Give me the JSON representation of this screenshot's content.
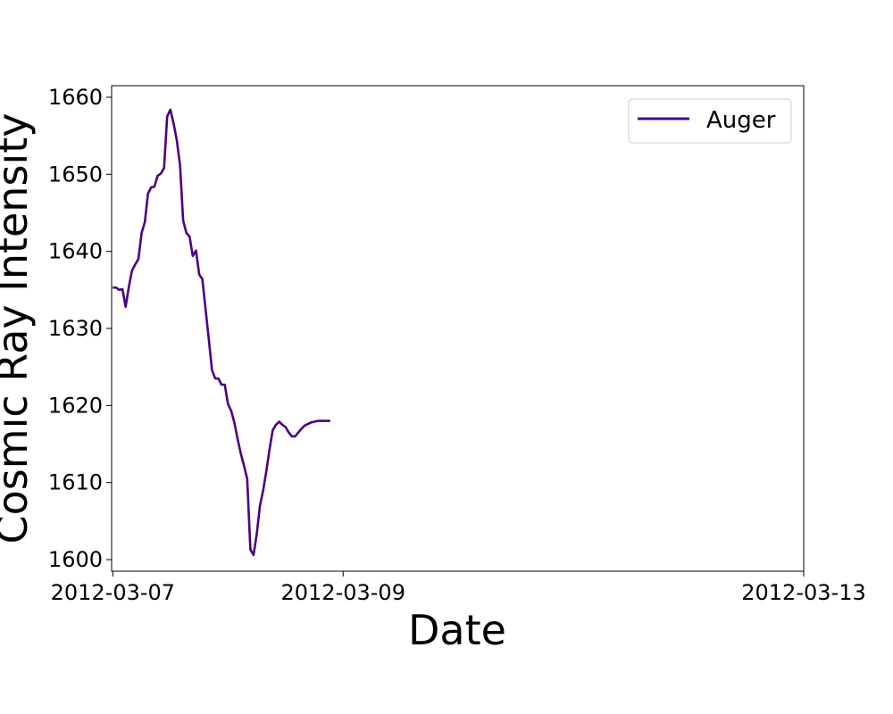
{
  "chart_data": {
    "type": "line",
    "xlabel": "Date",
    "ylabel": "Cosmic Ray Intensity",
    "x_ticks": [
      "2012-03-07",
      "2012-03-09",
      "2012-03-13"
    ],
    "y_ticks": [
      1600,
      1610,
      1620,
      1630,
      1640,
      1650,
      1660
    ],
    "xlim": [
      "2012-03-06T23:45",
      "2012-03-13T00:00"
    ],
    "ylim": [
      1598.5,
      1661.5
    ],
    "grid": false,
    "legend": "top-right",
    "series": [
      {
        "name": "Auger",
        "color": "#4b0082",
        "x": [
          "2012-03-07T00:00",
          "2012-03-07T00:40",
          "2012-03-07T01:20",
          "2012-03-07T02:00",
          "2012-03-07T02:40",
          "2012-03-07T03:20",
          "2012-03-07T04:00",
          "2012-03-07T04:40",
          "2012-03-07T05:20",
          "2012-03-07T06:00",
          "2012-03-07T06:40",
          "2012-03-07T07:20",
          "2012-03-07T08:00",
          "2012-03-07T08:40",
          "2012-03-07T09:20",
          "2012-03-07T10:00",
          "2012-03-07T10:40",
          "2012-03-07T11:20",
          "2012-03-07T12:00",
          "2012-03-07T12:40",
          "2012-03-07T13:20",
          "2012-03-07T14:00",
          "2012-03-07T14:40",
          "2012-03-07T15:20",
          "2012-03-07T16:00",
          "2012-03-07T16:40",
          "2012-03-07T17:20",
          "2012-03-07T18:00",
          "2012-03-07T18:40",
          "2012-03-07T19:20",
          "2012-03-07T20:00",
          "2012-03-07T20:40",
          "2012-03-07T21:20",
          "2012-03-07T22:00",
          "2012-03-07T22:40",
          "2012-03-07T23:20",
          "2012-03-08T00:00",
          "2012-03-08T00:40",
          "2012-03-08T01:20",
          "2012-03-08T02:00",
          "2012-03-08T02:40",
          "2012-03-08T03:20",
          "2012-03-08T04:00",
          "2012-03-08T04:40",
          "2012-03-08T05:20",
          "2012-03-08T06:00",
          "2012-03-08T06:40",
          "2012-03-08T07:20",
          "2012-03-08T08:00",
          "2012-03-08T08:40",
          "2012-03-08T09:20",
          "2012-03-08T10:00",
          "2012-03-08T10:40",
          "2012-03-08T11:20",
          "2012-03-08T12:00",
          "2012-03-08T12:40",
          "2012-03-08T13:20",
          "2012-03-08T14:00",
          "2012-03-08T14:40",
          "2012-03-08T15:20",
          "2012-03-08T16:00",
          "2012-03-08T16:40",
          "2012-03-08T17:20",
          "2012-03-08T18:00",
          "2012-03-08T18:40",
          "2012-03-08T19:20",
          "2012-03-08T20:00",
          "2012-03-08T20:40",
          "2012-03-08T21:20"
        ],
        "values": [
          1635.3,
          1635.3,
          1635.0,
          1635.1,
          1632.8,
          1635.4,
          1637.5,
          1638.3,
          1639.0,
          1642.4,
          1643.8,
          1647.5,
          1648.3,
          1648.4,
          1649.8,
          1650.1,
          1650.8,
          1657.5,
          1658.4,
          1656.6,
          1654.4,
          1651.2,
          1644.0,
          1642.4,
          1641.9,
          1639.4,
          1640.1,
          1637.0,
          1636.4,
          1632.5,
          1628.6,
          1624.6,
          1623.5,
          1623.5,
          1622.7,
          1622.7,
          1620.2,
          1619.3,
          1617.8,
          1615.7,
          1613.8,
          1612.2,
          1610.5,
          1601.3,
          1600.6,
          1603.3,
          1607.0,
          1609.0,
          1611.5,
          1614.3,
          1616.8,
          1617.5,
          1617.9,
          1617.5,
          1617.2,
          1616.5,
          1616.0,
          1616.0,
          1616.5,
          1617.0,
          1617.4,
          1617.6,
          1617.8,
          1617.9,
          1618.0,
          1618.0,
          1618.0,
          1618.0,
          1618.0
        ]
      }
    ]
  }
}
